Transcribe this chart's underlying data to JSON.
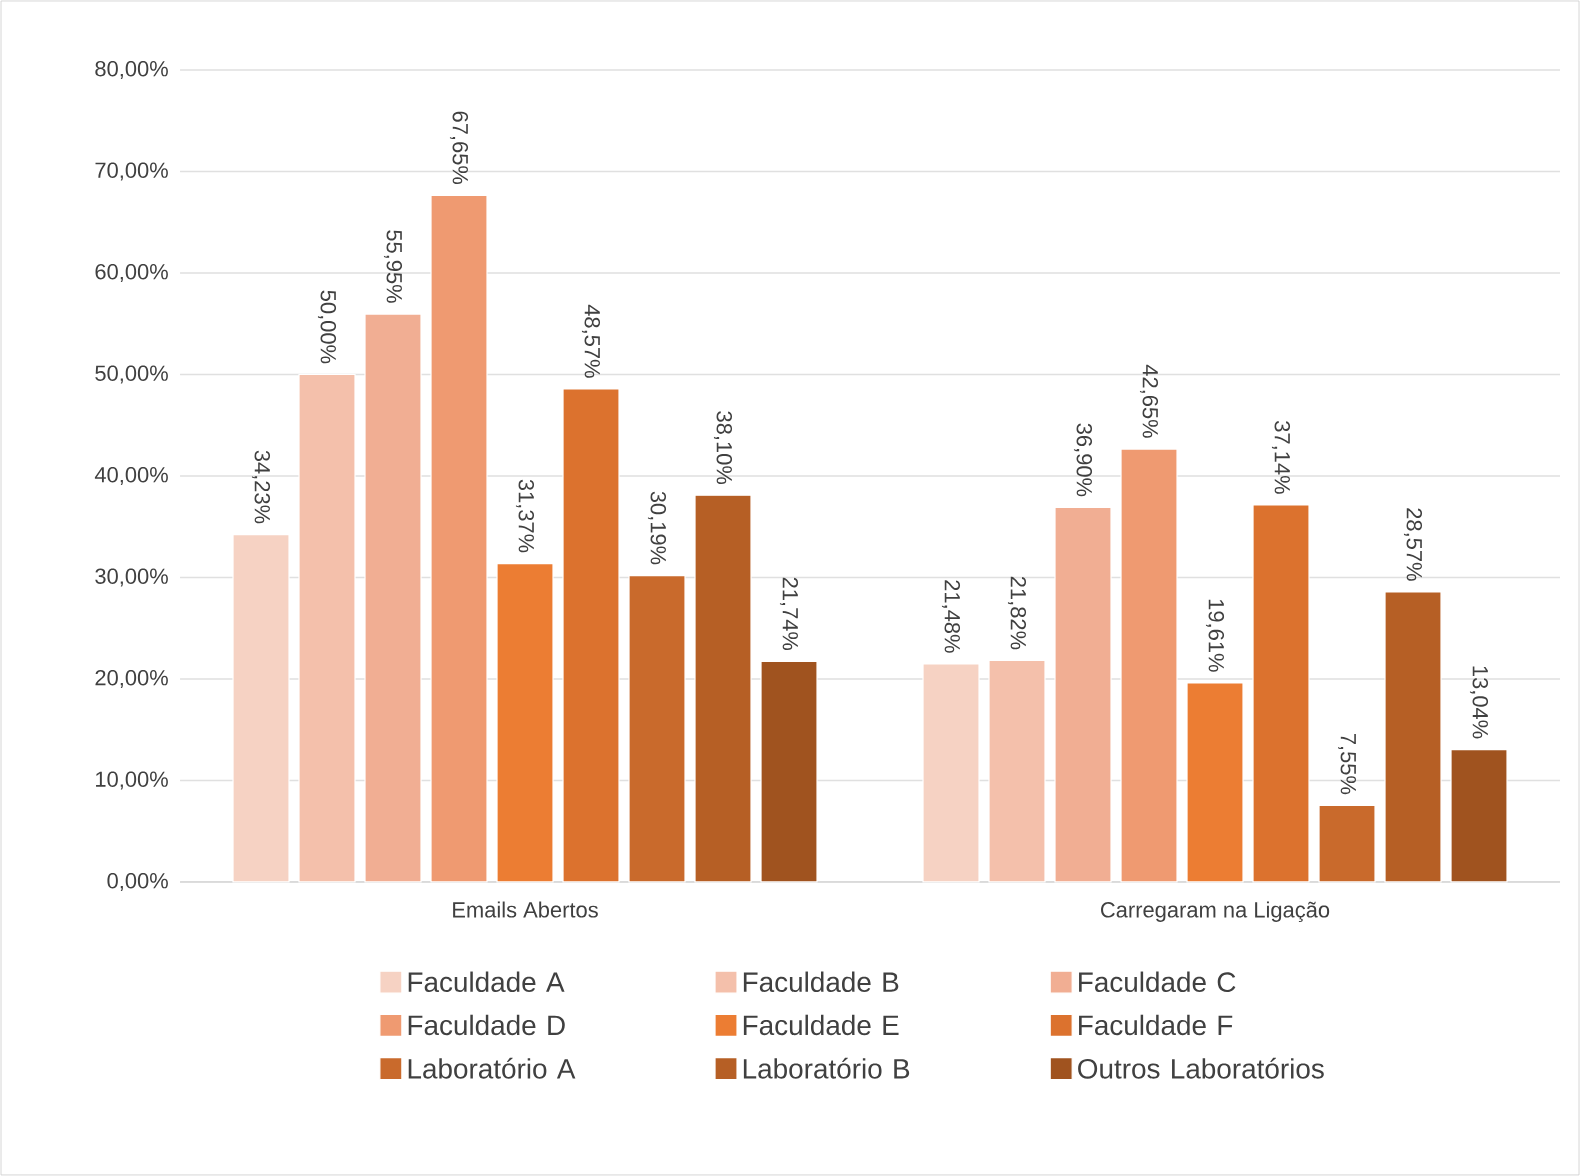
{
  "chart_data": {
    "type": "bar",
    "categories": [
      "Emails Abertos",
      "Carregaram na Ligação"
    ],
    "series": [
      {
        "name": "Faculdade A",
        "color": "#f6d2c3",
        "values": [
          34.23,
          21.48
        ],
        "value_labels": [
          "34,23%",
          "21,48%"
        ]
      },
      {
        "name": "Faculdade B",
        "color": "#f4c0ab",
        "values": [
          50.0,
          21.82
        ],
        "value_labels": [
          "50,00%",
          "21,82%"
        ]
      },
      {
        "name": "Faculdade C",
        "color": "#f1ae93",
        "values": [
          55.95,
          36.9
        ],
        "value_labels": [
          "55,95%",
          "36,90%"
        ]
      },
      {
        "name": "Faculdade D",
        "color": "#ef9a71",
        "values": [
          67.65,
          42.65
        ],
        "value_labels": [
          "67,65%",
          "42,65%"
        ]
      },
      {
        "name": "Faculdade E",
        "color": "#ec7d33",
        "values": [
          31.37,
          19.61
        ],
        "value_labels": [
          "31,37%",
          "19,61%"
        ]
      },
      {
        "name": "Faculdade F",
        "color": "#dc722e",
        "values": [
          48.57,
          37.14
        ],
        "value_labels": [
          "48,57%",
          "37,14%"
        ]
      },
      {
        "name": "Laboratório A",
        "color": "#c96a2c",
        "values": [
          30.19,
          7.55
        ],
        "value_labels": [
          "30,19%",
          "7,55%"
        ]
      },
      {
        "name": "Laboratório B",
        "color": "#b65f25",
        "values": [
          38.1,
          28.57
        ],
        "value_labels": [
          "38,10%",
          "28,57%"
        ]
      },
      {
        "name": "Outros Laboratórios",
        "color": "#a0531f",
        "values": [
          21.74,
          13.04
        ],
        "value_labels": [
          "21,74%",
          "13,04%"
        ]
      }
    ],
    "ylim": [
      0,
      80
    ],
    "yticks": [
      {
        "value": 0,
        "label": "0,00%"
      },
      {
        "value": 10,
        "label": "10,00%"
      },
      {
        "value": 20,
        "label": "20,00%"
      },
      {
        "value": 30,
        "label": "30,00%"
      },
      {
        "value": 40,
        "label": "40,00%"
      },
      {
        "value": 50,
        "label": "50,00%"
      },
      {
        "value": 60,
        "label": "60,00%"
      },
      {
        "value": 70,
        "label": "70,00%"
      },
      {
        "value": 80,
        "label": "80,00%"
      }
    ],
    "grid": "y",
    "legend": "bottom"
  }
}
